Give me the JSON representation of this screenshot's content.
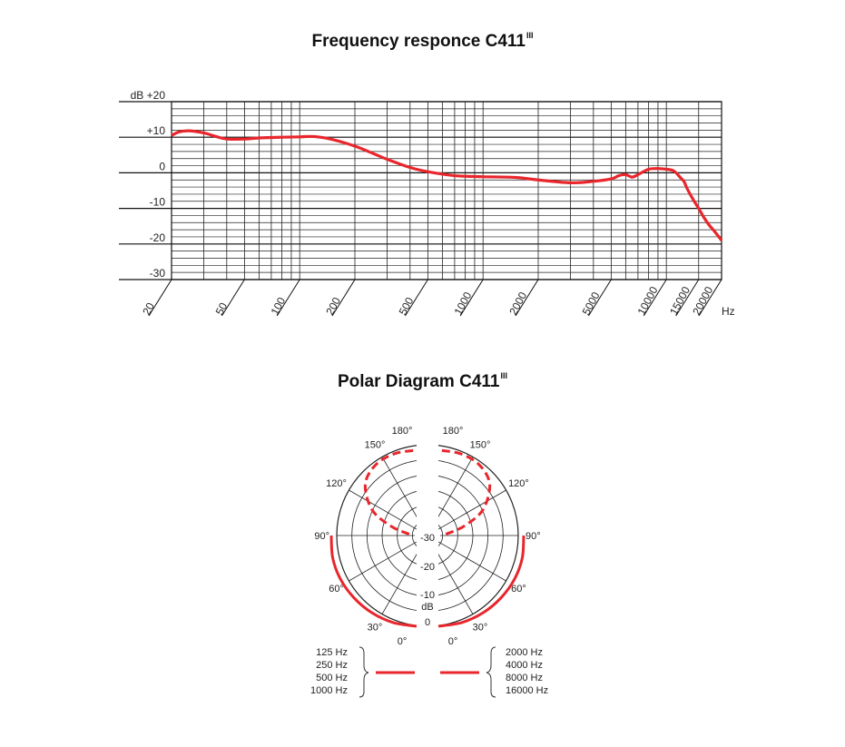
{
  "chart_data": [
    {
      "type": "line",
      "title": "Frequency responce C411",
      "title_superscript": "III",
      "xlabel": "Hz",
      "ylabel": "dB",
      "x_scale": "log",
      "xlim": [
        20,
        20000
      ],
      "ylim": [
        -30,
        20
      ],
      "x_ticks": [
        20,
        50,
        100,
        200,
        500,
        1000,
        2000,
        5000,
        10000,
        15000,
        20000
      ],
      "y_ticks": [
        {
          "value": 20,
          "label": "dB  +20"
        },
        {
          "value": 10,
          "label": "+10"
        },
        {
          "value": 0,
          "label": "0"
        },
        {
          "value": -10,
          "label": "-10"
        },
        {
          "value": -20,
          "label": "-20"
        },
        {
          "value": -30,
          "label": "-30"
        }
      ],
      "grid": true,
      "color": "#e8262c",
      "series": [
        {
          "x": [
            20,
            22,
            25,
            30,
            35,
            40,
            50,
            60,
            80,
            100,
            120,
            150,
            200,
            250,
            300,
            400,
            500,
            700,
            1000,
            1500,
            2000,
            3000,
            4000,
            5000,
            5500,
            6000,
            6500,
            7000,
            8000,
            9000,
            10000,
            11000,
            12000,
            12500,
            13000,
            14000,
            15000,
            16000,
            17000,
            18000,
            19000,
            20000
          ],
          "y": [
            10.5,
            11.5,
            11.8,
            11.2,
            10.2,
            9.5,
            9.5,
            9.8,
            10.0,
            10.1,
            10.2,
            9.4,
            7.5,
            5.5,
            3.8,
            1.5,
            0.3,
            -0.8,
            -1.1,
            -1.3,
            -2.0,
            -2.8,
            -2.4,
            -1.7,
            -0.8,
            -0.5,
            -1.2,
            -0.5,
            1.0,
            1.2,
            1.0,
            0.5,
            -1.5,
            -2.5,
            -4.5,
            -7.5,
            -10.0,
            -12.5,
            -14.5,
            -16.0,
            -17.5,
            -19.0
          ]
        }
      ]
    },
    {
      "type": "polar",
      "title": "Polar Diagram C411",
      "title_superscript": "III",
      "angle_labels": [
        "0°",
        "30°",
        "60°",
        "90°",
        "120°",
        "150°",
        "180°"
      ],
      "db_labels": [
        "0",
        "-10",
        "-20",
        "-30"
      ],
      "db_unit": "dB",
      "rlim": [
        -30,
        0
      ],
      "color": "#e8262c",
      "series": [
        {
          "side": "left",
          "style": "solid",
          "angles": [
            0,
            15,
            30,
            45,
            60,
            75,
            90
          ],
          "db": [
            0,
            -0.2,
            -0.5,
            -0.8,
            -1.0,
            -1.3,
            -1.8
          ]
        },
        {
          "side": "left",
          "style": "dashed",
          "angles": [
            100,
            110,
            120,
            135,
            150,
            165,
            180
          ],
          "db": [
            -27.5,
            -21,
            -13,
            -6,
            -3,
            -2,
            -1.8
          ]
        },
        {
          "side": "right",
          "style": "solid",
          "angles": [
            0,
            15,
            30,
            45,
            60,
            75,
            90
          ],
          "db": [
            0,
            -0.2,
            -0.5,
            -0.8,
            -1.0,
            -1.3,
            -1.8
          ]
        },
        {
          "side": "right",
          "style": "dashed",
          "angles": [
            100,
            110,
            120,
            135,
            150,
            165,
            180
          ],
          "db": [
            -27.5,
            -21,
            -13,
            -6,
            -3,
            -2,
            -1.8
          ]
        }
      ],
      "legend": {
        "left": [
          "125 Hz",
          "250 Hz",
          "500 Hz",
          "1000 Hz"
        ],
        "right": [
          "2000 Hz",
          "4000 Hz",
          "8000 Hz",
          "16000 Hz"
        ]
      }
    }
  ]
}
